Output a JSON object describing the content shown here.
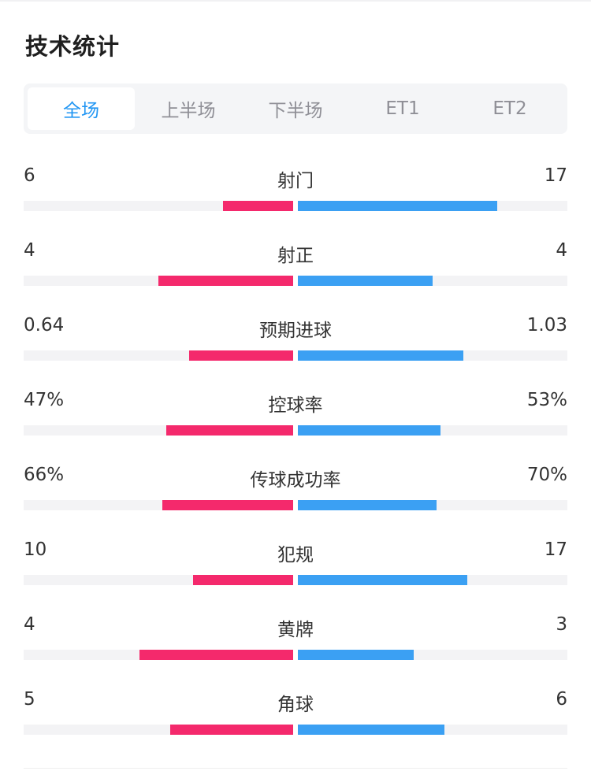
{
  "title": "技术统计",
  "colors": {
    "home_bar": "#f4296c",
    "away_bar": "#3ba0f3",
    "active_tab": "#2196f3"
  },
  "tabs": [
    {
      "label": "全场",
      "active": true
    },
    {
      "label": "上半场",
      "active": false
    },
    {
      "label": "下半场",
      "active": false
    },
    {
      "label": "ET1",
      "active": false
    },
    {
      "label": "ET2",
      "active": false
    }
  ],
  "stats": [
    {
      "label": "射门",
      "home": "6",
      "away": "17",
      "home_fill": 0.26,
      "away_fill": 0.74
    },
    {
      "label": "射正",
      "home": "4",
      "away": "4",
      "home_fill": 0.5,
      "away_fill": 0.5
    },
    {
      "label": "预期进球",
      "home": "0.64",
      "away": "1.03",
      "home_fill": 0.385,
      "away_fill": 0.615
    },
    {
      "label": "控球率",
      "home": "47%",
      "away": "53%",
      "home_fill": 0.47,
      "away_fill": 0.53
    },
    {
      "label": "传球成功率",
      "home": "66%",
      "away": "70%",
      "home_fill": 0.485,
      "away_fill": 0.515
    },
    {
      "label": "犯规",
      "home": "10",
      "away": "17",
      "home_fill": 0.37,
      "away_fill": 0.63
    },
    {
      "label": "黄牌",
      "home": "4",
      "away": "3",
      "home_fill": 0.57,
      "away_fill": 0.43
    },
    {
      "label": "角球",
      "home": "5",
      "away": "6",
      "home_fill": 0.455,
      "away_fill": 0.545
    }
  ]
}
